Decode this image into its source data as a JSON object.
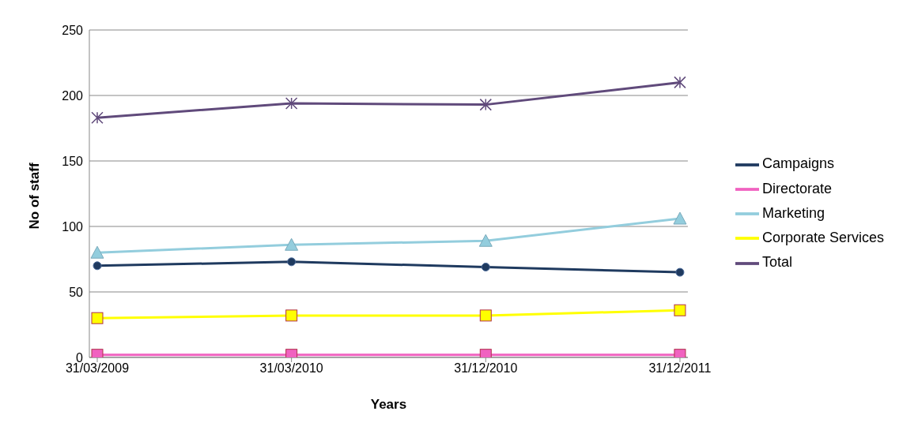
{
  "chart_data": {
    "type": "line",
    "xlabel": "Years",
    "ylabel": "No of staff",
    "categories": [
      "31/03/2009",
      "31/03/2010",
      "31/12/2010",
      "31/12/2011"
    ],
    "series": [
      {
        "name": "Campaigns",
        "color": "#1f3a5f",
        "values": [
          70,
          73,
          69,
          65
        ],
        "marker": "circle"
      },
      {
        "name": "Directorate",
        "color": "#f062c0",
        "values": [
          2,
          2,
          2,
          2
        ],
        "marker": "square"
      },
      {
        "name": "Marketing",
        "color": "#93cddd",
        "values": [
          80,
          86,
          89,
          106
        ],
        "marker": "triangle"
      },
      {
        "name": "Corporate Services",
        "color": "#ffff00",
        "values": [
          30,
          32,
          32,
          36
        ],
        "marker": "square"
      },
      {
        "name": "Total",
        "color": "#604a7b",
        "values": [
          183,
          194,
          193,
          210
        ],
        "marker": "cross"
      }
    ],
    "ylim": [
      0,
      250
    ],
    "yticks": [
      0,
      50,
      100,
      150,
      200,
      250
    ],
    "grid": "y",
    "legend": "right",
    "line_style": "solid"
  }
}
